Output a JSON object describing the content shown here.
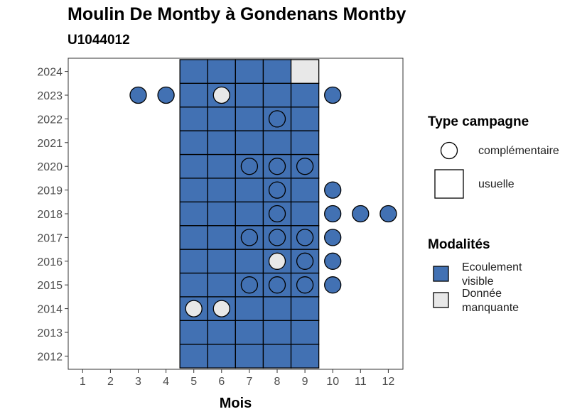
{
  "chart_data": {
    "type": "heatmap",
    "title": "Moulin De Montby à Gondenans Montby",
    "subtitle": "U1044012",
    "xlabel": "Mois",
    "ylabel": "",
    "x_ticks": [
      1,
      2,
      3,
      4,
      5,
      6,
      7,
      8,
      9,
      10,
      11,
      12
    ],
    "y_ticks": [
      2012,
      2013,
      2014,
      2015,
      2016,
      2017,
      2018,
      2019,
      2020,
      2021,
      2022,
      2023,
      2024
    ],
    "colors": {
      "Ecoulement visible": "#4271b3",
      "Donnée manquante": "#e8e8e8"
    },
    "shape_legend_title": "Type campagne",
    "shape_legend": [
      {
        "label": "complémentaire",
        "shape": "circle"
      },
      {
        "label": "usuelle",
        "shape": "square"
      }
    ],
    "color_legend_title": "Modalités",
    "color_legend": [
      {
        "label": "Ecoulement visible",
        "color": "#4271b3"
      },
      {
        "label": "Donnée manquante",
        "color": "#e8e8e8"
      }
    ],
    "usuelle": [
      {
        "year": 2012,
        "month": 5,
        "m": "Ecoulement visible"
      },
      {
        "year": 2012,
        "month": 6,
        "m": "Ecoulement visible"
      },
      {
        "year": 2012,
        "month": 7,
        "m": "Ecoulement visible"
      },
      {
        "year": 2012,
        "month": 8,
        "m": "Ecoulement visible"
      },
      {
        "year": 2012,
        "month": 9,
        "m": "Ecoulement visible"
      },
      {
        "year": 2013,
        "month": 5,
        "m": "Ecoulement visible"
      },
      {
        "year": 2013,
        "month": 6,
        "m": "Ecoulement visible"
      },
      {
        "year": 2013,
        "month": 7,
        "m": "Ecoulement visible"
      },
      {
        "year": 2013,
        "month": 8,
        "m": "Ecoulement visible"
      },
      {
        "year": 2013,
        "month": 9,
        "m": "Ecoulement visible"
      },
      {
        "year": 2014,
        "month": 5,
        "m": "Ecoulement visible"
      },
      {
        "year": 2014,
        "month": 6,
        "m": "Ecoulement visible"
      },
      {
        "year": 2014,
        "month": 7,
        "m": "Ecoulement visible"
      },
      {
        "year": 2014,
        "month": 8,
        "m": "Ecoulement visible"
      },
      {
        "year": 2014,
        "month": 9,
        "m": "Ecoulement visible"
      },
      {
        "year": 2015,
        "month": 5,
        "m": "Ecoulement visible"
      },
      {
        "year": 2015,
        "month": 6,
        "m": "Ecoulement visible"
      },
      {
        "year": 2015,
        "month": 7,
        "m": "Ecoulement visible"
      },
      {
        "year": 2015,
        "month": 8,
        "m": "Ecoulement visible"
      },
      {
        "year": 2015,
        "month": 9,
        "m": "Ecoulement visible"
      },
      {
        "year": 2016,
        "month": 5,
        "m": "Ecoulement visible"
      },
      {
        "year": 2016,
        "month": 6,
        "m": "Ecoulement visible"
      },
      {
        "year": 2016,
        "month": 7,
        "m": "Ecoulement visible"
      },
      {
        "year": 2016,
        "month": 8,
        "m": "Ecoulement visible"
      },
      {
        "year": 2016,
        "month": 9,
        "m": "Ecoulement visible"
      },
      {
        "year": 2017,
        "month": 5,
        "m": "Ecoulement visible"
      },
      {
        "year": 2017,
        "month": 6,
        "m": "Ecoulement visible"
      },
      {
        "year": 2017,
        "month": 7,
        "m": "Ecoulement visible"
      },
      {
        "year": 2017,
        "month": 8,
        "m": "Ecoulement visible"
      },
      {
        "year": 2017,
        "month": 9,
        "m": "Ecoulement visible"
      },
      {
        "year": 2018,
        "month": 5,
        "m": "Ecoulement visible"
      },
      {
        "year": 2018,
        "month": 6,
        "m": "Ecoulement visible"
      },
      {
        "year": 2018,
        "month": 7,
        "m": "Ecoulement visible"
      },
      {
        "year": 2018,
        "month": 8,
        "m": "Ecoulement visible"
      },
      {
        "year": 2018,
        "month": 9,
        "m": "Ecoulement visible"
      },
      {
        "year": 2019,
        "month": 5,
        "m": "Ecoulement visible"
      },
      {
        "year": 2019,
        "month": 6,
        "m": "Ecoulement visible"
      },
      {
        "year": 2019,
        "month": 7,
        "m": "Ecoulement visible"
      },
      {
        "year": 2019,
        "month": 8,
        "m": "Ecoulement visible"
      },
      {
        "year": 2019,
        "month": 9,
        "m": "Ecoulement visible"
      },
      {
        "year": 2020,
        "month": 5,
        "m": "Ecoulement visible"
      },
      {
        "year": 2020,
        "month": 6,
        "m": "Ecoulement visible"
      },
      {
        "year": 2020,
        "month": 7,
        "m": "Ecoulement visible"
      },
      {
        "year": 2020,
        "month": 8,
        "m": "Ecoulement visible"
      },
      {
        "year": 2020,
        "month": 9,
        "m": "Ecoulement visible"
      },
      {
        "year": 2021,
        "month": 5,
        "m": "Ecoulement visible"
      },
      {
        "year": 2021,
        "month": 6,
        "m": "Ecoulement visible"
      },
      {
        "year": 2021,
        "month": 7,
        "m": "Ecoulement visible"
      },
      {
        "year": 2021,
        "month": 8,
        "m": "Ecoulement visible"
      },
      {
        "year": 2021,
        "month": 9,
        "m": "Ecoulement visible"
      },
      {
        "year": 2022,
        "month": 5,
        "m": "Ecoulement visible"
      },
      {
        "year": 2022,
        "month": 6,
        "m": "Ecoulement visible"
      },
      {
        "year": 2022,
        "month": 7,
        "m": "Ecoulement visible"
      },
      {
        "year": 2022,
        "month": 8,
        "m": "Ecoulement visible"
      },
      {
        "year": 2022,
        "month": 9,
        "m": "Ecoulement visible"
      },
      {
        "year": 2023,
        "month": 5,
        "m": "Ecoulement visible"
      },
      {
        "year": 2023,
        "month": 6,
        "m": "Ecoulement visible"
      },
      {
        "year": 2023,
        "month": 7,
        "m": "Ecoulement visible"
      },
      {
        "year": 2023,
        "month": 8,
        "m": "Ecoulement visible"
      },
      {
        "year": 2023,
        "month": 9,
        "m": "Ecoulement visible"
      },
      {
        "year": 2024,
        "month": 5,
        "m": "Ecoulement visible"
      },
      {
        "year": 2024,
        "month": 6,
        "m": "Ecoulement visible"
      },
      {
        "year": 2024,
        "month": 7,
        "m": "Ecoulement visible"
      },
      {
        "year": 2024,
        "month": 8,
        "m": "Ecoulement visible"
      },
      {
        "year": 2024,
        "month": 9,
        "m": "Donnée manquante"
      }
    ],
    "complementaire": [
      {
        "year": 2023,
        "month": 3,
        "m": "Ecoulement visible"
      },
      {
        "year": 2023,
        "month": 4,
        "m": "Ecoulement visible"
      },
      {
        "year": 2023,
        "month": 6,
        "m": "Donnée manquante"
      },
      {
        "year": 2023,
        "month": 10,
        "m": "Ecoulement visible"
      },
      {
        "year": 2022,
        "month": 8,
        "m": "Ecoulement visible"
      },
      {
        "year": 2020,
        "month": 7,
        "m": "Ecoulement visible"
      },
      {
        "year": 2020,
        "month": 8,
        "m": "Ecoulement visible"
      },
      {
        "year": 2020,
        "month": 9,
        "m": "Ecoulement visible"
      },
      {
        "year": 2019,
        "month": 8,
        "m": "Ecoulement visible"
      },
      {
        "year": 2019,
        "month": 10,
        "m": "Ecoulement visible"
      },
      {
        "year": 2018,
        "month": 8,
        "m": "Ecoulement visible"
      },
      {
        "year": 2018,
        "month": 10,
        "m": "Ecoulement visible"
      },
      {
        "year": 2018,
        "month": 11,
        "m": "Ecoulement visible"
      },
      {
        "year": 2018,
        "month": 12,
        "m": "Ecoulement visible"
      },
      {
        "year": 2017,
        "month": 7,
        "m": "Ecoulement visible"
      },
      {
        "year": 2017,
        "month": 8,
        "m": "Ecoulement visible"
      },
      {
        "year": 2017,
        "month": 9,
        "m": "Ecoulement visible"
      },
      {
        "year": 2017,
        "month": 10,
        "m": "Ecoulement visible"
      },
      {
        "year": 2016,
        "month": 8,
        "m": "Donnée manquante"
      },
      {
        "year": 2016,
        "month": 9,
        "m": "Ecoulement visible"
      },
      {
        "year": 2016,
        "month": 10,
        "m": "Ecoulement visible"
      },
      {
        "year": 2015,
        "month": 7,
        "m": "Ecoulement visible"
      },
      {
        "year": 2015,
        "month": 8,
        "m": "Ecoulement visible"
      },
      {
        "year": 2015,
        "month": 9,
        "m": "Ecoulement visible"
      },
      {
        "year": 2015,
        "month": 10,
        "m": "Ecoulement visible"
      },
      {
        "year": 2014,
        "month": 5,
        "m": "Donnée manquante"
      },
      {
        "year": 2014,
        "month": 6,
        "m": "Donnée manquante"
      }
    ]
  }
}
